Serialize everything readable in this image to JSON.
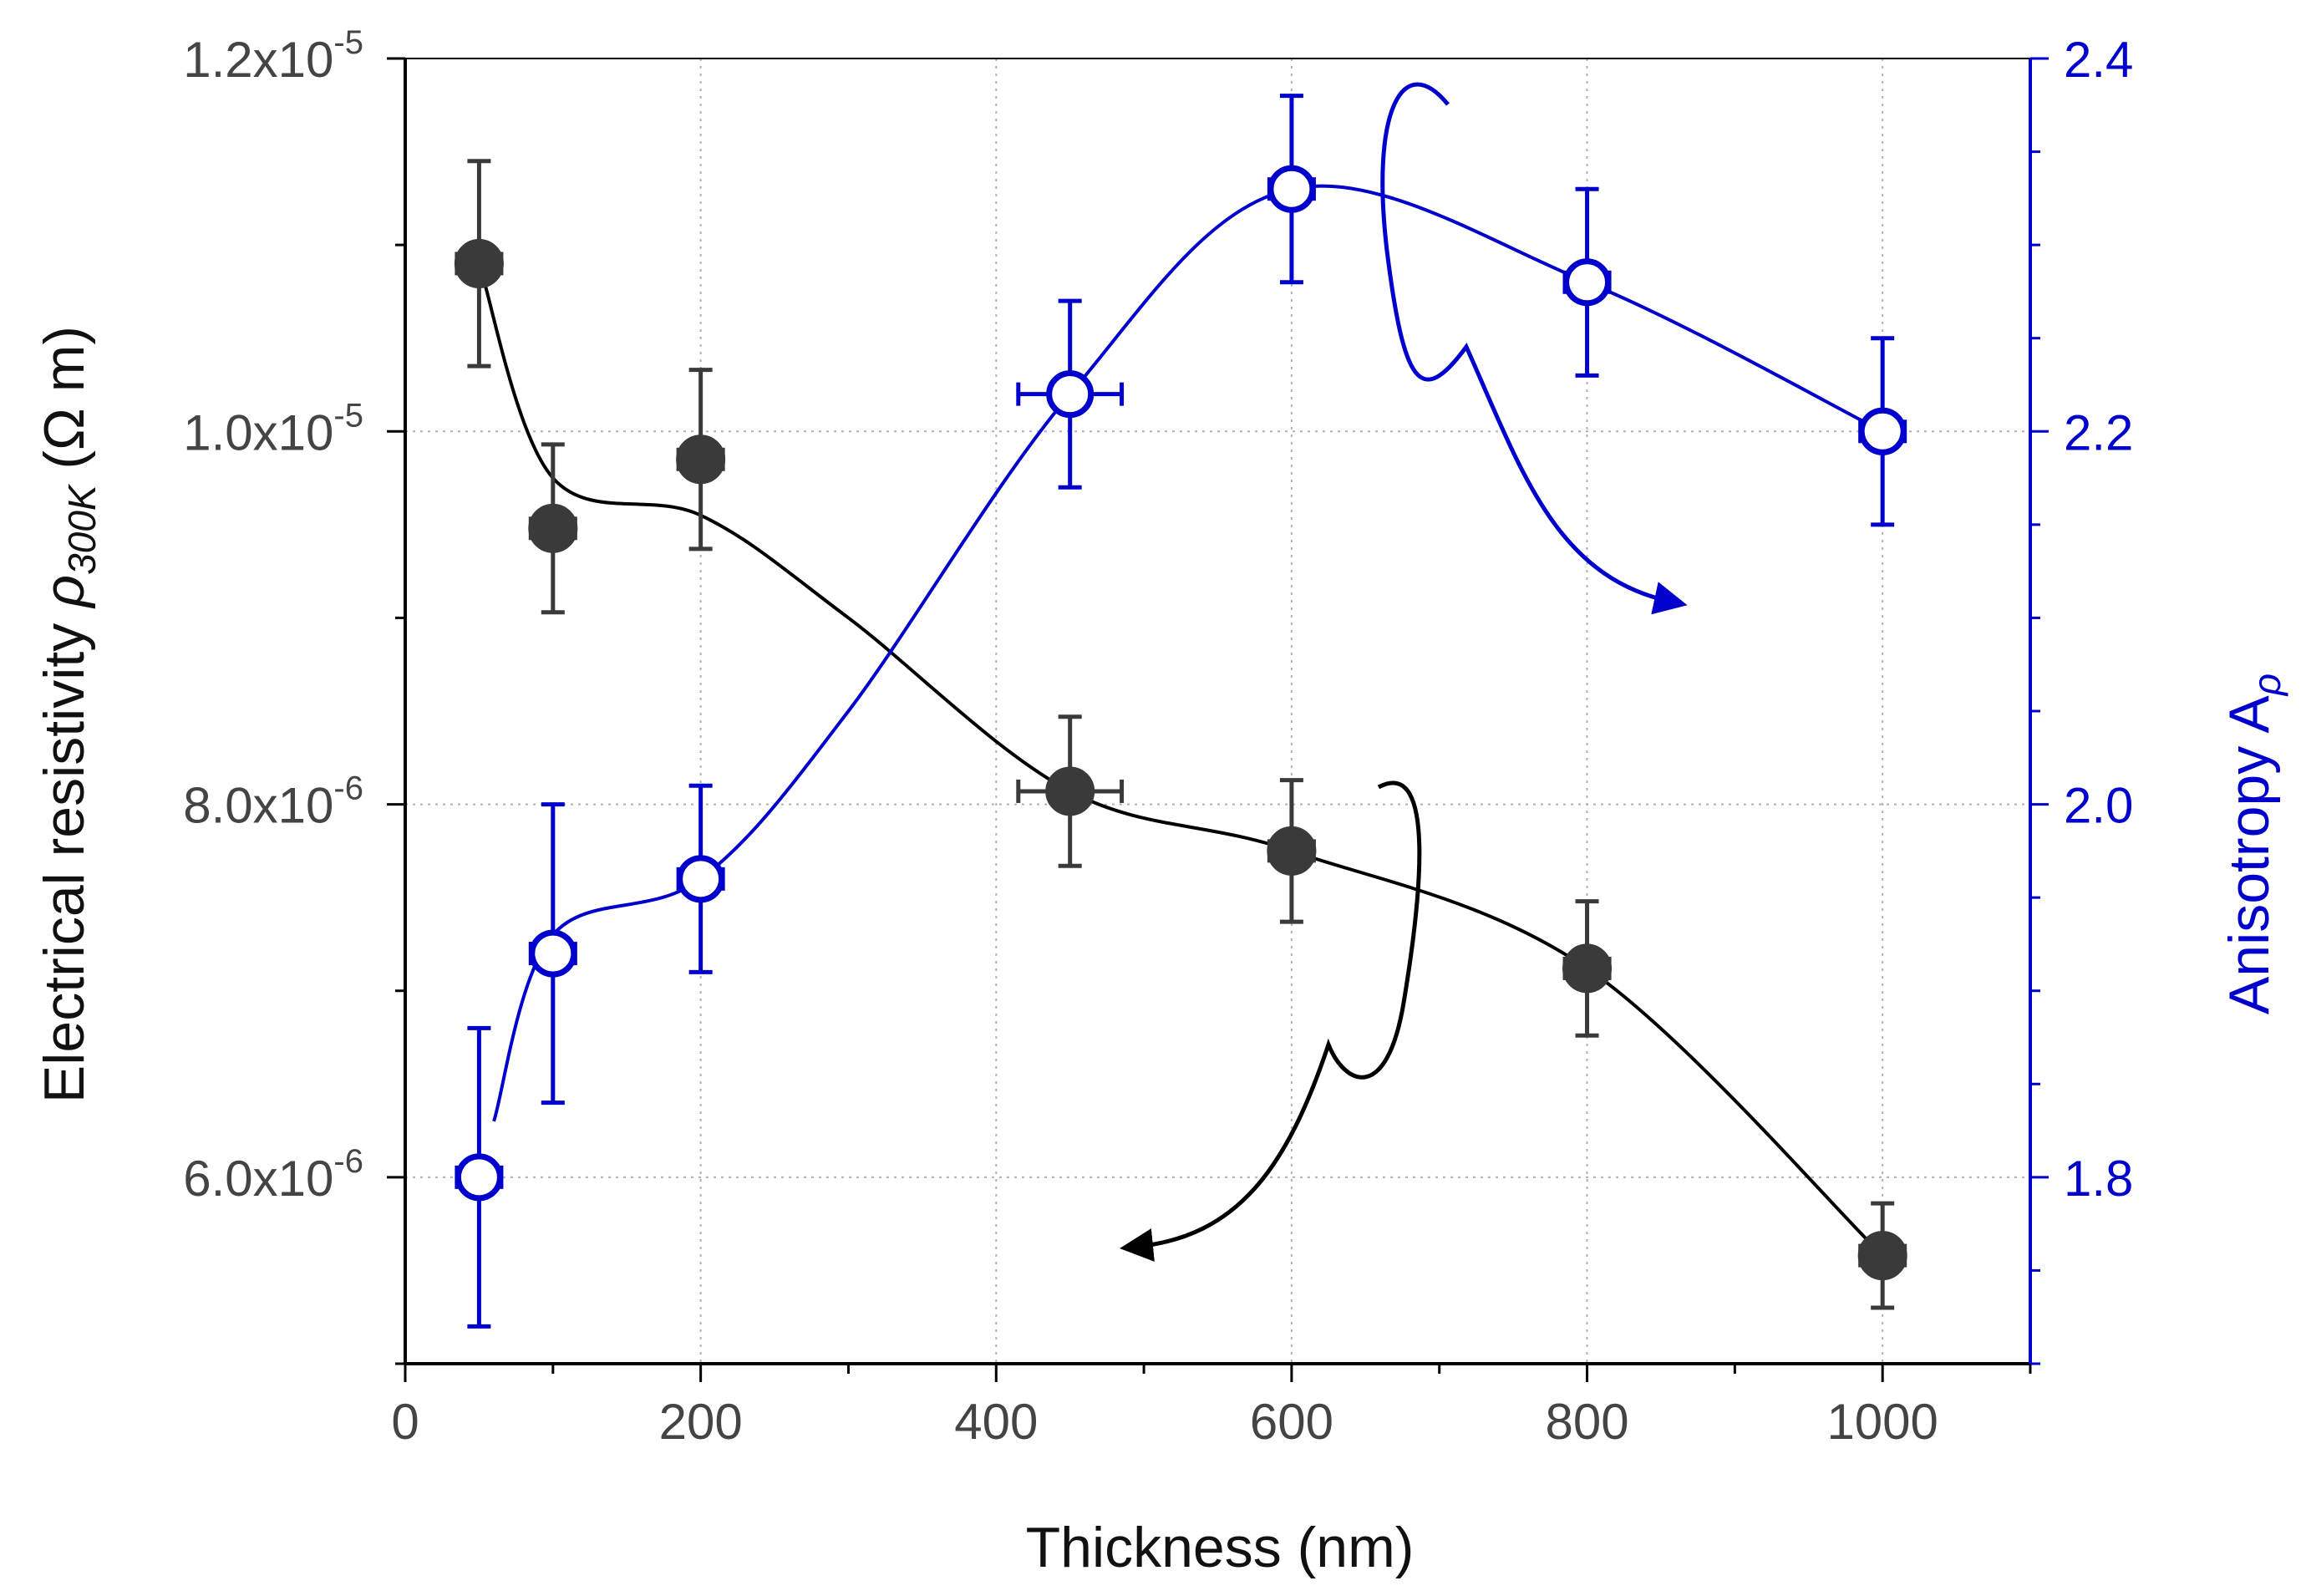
{
  "chart_data": {
    "type": "scatter",
    "x_axis": {
      "label": "Thickness (nm)",
      "range": [
        0,
        1100
      ],
      "ticks": [
        0,
        200,
        400,
        600,
        800,
        1000
      ],
      "tick_labels": [
        "0",
        "200",
        "400",
        "600",
        "800",
        "1000"
      ]
    },
    "y_axis_left": {
      "label_prefix": "Electrical resistivity ",
      "label_symbol": "ρ",
      "label_subscript": "300K",
      "label_suffix": " (Ω m)",
      "range": [
        5e-06,
        1.2e-05
      ],
      "ticks": [
        6e-06,
        8e-06,
        1e-05,
        1.2e-05
      ],
      "tick_mantissas": [
        "6.0x10",
        "8.0x10",
        "1.0x10",
        "1.2x10"
      ],
      "tick_exponents": [
        "-6",
        "-6",
        "-5",
        "-5"
      ],
      "color": "#3a3a3a"
    },
    "y_axis_right": {
      "label": "Anisotropy A",
      "label_subscript": "ρ",
      "range": [
        1.7,
        2.4
      ],
      "ticks": [
        1.8,
        2.0,
        2.2,
        2.4
      ],
      "tick_labels": [
        "1.8",
        "2.0",
        "2.2",
        "2.4"
      ],
      "color": "#0000cc"
    },
    "grid": true,
    "series": [
      {
        "name": "Electrical resistivity",
        "axis": "left",
        "marker": "filled-circle",
        "color": "#3a3a3a",
        "line_color": "#000000",
        "points": [
          {
            "x": 50,
            "y": 1.09e-05,
            "xerr": 15,
            "yerr": 5.5e-07
          },
          {
            "x": 100,
            "y": 9.48e-06,
            "xerr": 15,
            "yerr": 4.5e-07
          },
          {
            "x": 200,
            "y": 9.85e-06,
            "xerr": 15,
            "yerr": 4.8e-07
          },
          {
            "x": 450,
            "y": 8.07e-06,
            "xerr": 35,
            "yerr": 4e-07
          },
          {
            "x": 600,
            "y": 7.75e-06,
            "xerr": 15,
            "yerr": 3.8e-07
          },
          {
            "x": 800,
            "y": 7.12e-06,
            "xerr": 15,
            "yerr": 3.6e-07
          },
          {
            "x": 1000,
            "y": 5.58e-06,
            "xerr": 15,
            "yerr": 2.8e-07
          }
        ],
        "trend_curve": [
          [
            50,
            1.09e-05
          ],
          [
            100,
            9.75e-06
          ],
          [
            200,
            9.55e-06
          ],
          [
            300,
            9e-06
          ],
          [
            450,
            8.07e-06
          ],
          [
            600,
            7.75e-06
          ],
          [
            800,
            7.12e-06
          ],
          [
            1000,
            5.58e-06
          ]
        ]
      },
      {
        "name": "Anisotropy",
        "axis": "right",
        "marker": "open-circle",
        "color": "#0000cc",
        "line_color": "#0000cc",
        "points": [
          {
            "x": 50,
            "y": 1.8,
            "xerr": 15,
            "yerr": 0.08
          },
          {
            "x": 100,
            "y": 1.92,
            "xerr": 15,
            "yerr": 0.08
          },
          {
            "x": 200,
            "y": 1.96,
            "xerr": 15,
            "yerr": 0.05
          },
          {
            "x": 450,
            "y": 2.22,
            "xerr": 35,
            "yerr": 0.05
          },
          {
            "x": 600,
            "y": 2.33,
            "xerr": 15,
            "yerr": 0.05
          },
          {
            "x": 800,
            "y": 2.28,
            "xerr": 15,
            "yerr": 0.05
          },
          {
            "x": 1000,
            "y": 2.2,
            "xerr": 15,
            "yerr": 0.05
          }
        ],
        "trend_curve": [
          [
            60,
            1.83
          ],
          [
            100,
            1.93
          ],
          [
            200,
            1.96
          ],
          [
            300,
            2.05
          ],
          [
            450,
            2.22
          ],
          [
            600,
            2.33
          ],
          [
            800,
            2.28
          ],
          [
            1000,
            2.2
          ]
        ]
      }
    ],
    "annotations": [
      {
        "type": "arrow",
        "meaning": "black curve refers to left axis",
        "color": "#000000"
      },
      {
        "type": "arrow",
        "meaning": "blue curve refers to right axis",
        "color": "#0000cc"
      }
    ]
  }
}
